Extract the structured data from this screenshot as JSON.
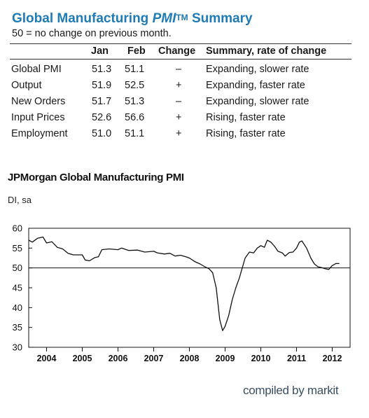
{
  "summary": {
    "title_main": "Global Manufacturing ",
    "title_em": "PMI",
    "title_tm": "TM",
    "title_end": " Summary",
    "subtitle": "50 = no change on previous month.",
    "headers": {
      "jan": "Jan",
      "feb": "Feb",
      "change": "Change",
      "summary": "Summary, rate of change"
    },
    "rows": [
      {
        "name": "Global PMI",
        "jan": "51.3",
        "feb": "51.1",
        "change": "–",
        "summary": "Expanding, slower rate"
      },
      {
        "name": "Output",
        "jan": "51.9",
        "feb": "52.5",
        "change": "+",
        "summary": "Expanding, faster rate"
      },
      {
        "name": "New Orders",
        "jan": "51.7",
        "feb": "51.3",
        "change": "–",
        "summary": "Expanding, slower rate"
      },
      {
        "name": "Input Prices",
        "jan": "52.6",
        "feb": "56.6",
        "change": "+",
        "summary": "Rising, faster rate"
      },
      {
        "name": "Employment",
        "jan": "51.0",
        "feb": "51.1",
        "change": "+",
        "summary": "Rising, faster rate"
      }
    ]
  },
  "chart_data": {
    "type": "line",
    "title": "JPMorgan Global Manufacturing PMI",
    "ylabel": "DI, sa",
    "ylim": [
      30,
      60
    ],
    "yticks": [
      30,
      35,
      40,
      45,
      50,
      55,
      60
    ],
    "xlim": [
      2003.5,
      2012.5
    ],
    "xtick_labels": [
      "2004",
      "2005",
      "2006",
      "2007",
      "2008",
      "2009",
      "2010",
      "2011",
      "2012"
    ],
    "reference_line": 50,
    "series": [
      {
        "values": [
          [
            2003.5,
            57.0
          ],
          [
            2003.6,
            56.5
          ],
          [
            2003.75,
            57.5
          ],
          [
            2003.9,
            57.8
          ],
          [
            2004.0,
            56.3
          ],
          [
            2004.15,
            56.6
          ],
          [
            2004.3,
            55.2
          ],
          [
            2004.45,
            54.8
          ],
          [
            2004.6,
            53.7
          ],
          [
            2004.75,
            53.3
          ],
          [
            2005.0,
            53.3
          ],
          [
            2005.08,
            52.0
          ],
          [
            2005.2,
            51.8
          ],
          [
            2005.35,
            52.6
          ],
          [
            2005.45,
            52.8
          ],
          [
            2005.55,
            54.6
          ],
          [
            2005.75,
            54.8
          ],
          [
            2006.0,
            54.6
          ],
          [
            2006.1,
            55.0
          ],
          [
            2006.3,
            54.4
          ],
          [
            2006.55,
            54.5
          ],
          [
            2006.75,
            54.0
          ],
          [
            2007.0,
            54.2
          ],
          [
            2007.1,
            53.8
          ],
          [
            2007.3,
            53.5
          ],
          [
            2007.45,
            53.7
          ],
          [
            2007.6,
            53.0
          ],
          [
            2007.75,
            53.2
          ],
          [
            2007.9,
            52.8
          ],
          [
            2008.0,
            52.5
          ],
          [
            2008.15,
            51.6
          ],
          [
            2008.3,
            51.0
          ],
          [
            2008.45,
            50.2
          ],
          [
            2008.55,
            49.8
          ],
          [
            2008.65,
            48.8
          ],
          [
            2008.75,
            45.0
          ],
          [
            2008.85,
            37.0
          ],
          [
            2008.93,
            34.2
          ],
          [
            2009.0,
            35.3
          ],
          [
            2009.1,
            38.0
          ],
          [
            2009.2,
            42.0
          ],
          [
            2009.3,
            45.0
          ],
          [
            2009.4,
            47.5
          ],
          [
            2009.48,
            50.0
          ],
          [
            2009.56,
            52.5
          ],
          [
            2009.68,
            54.0
          ],
          [
            2009.8,
            53.8
          ],
          [
            2009.9,
            55.0
          ],
          [
            2010.0,
            55.6
          ],
          [
            2010.1,
            55.2
          ],
          [
            2010.18,
            57.0
          ],
          [
            2010.28,
            56.5
          ],
          [
            2010.38,
            55.5
          ],
          [
            2010.48,
            54.2
          ],
          [
            2010.6,
            53.8
          ],
          [
            2010.68,
            53.0
          ],
          [
            2010.8,
            53.9
          ],
          [
            2010.9,
            54.0
          ],
          [
            2011.0,
            55.0
          ],
          [
            2011.08,
            56.5
          ],
          [
            2011.15,
            56.8
          ],
          [
            2011.28,
            55.0
          ],
          [
            2011.4,
            52.5
          ],
          [
            2011.5,
            51.0
          ],
          [
            2011.6,
            50.3
          ],
          [
            2011.7,
            50.1
          ],
          [
            2011.8,
            49.8
          ],
          [
            2011.9,
            49.6
          ],
          [
            2012.0,
            50.6
          ],
          [
            2012.1,
            51.1
          ],
          [
            2012.2,
            51.1
          ]
        ]
      }
    ]
  },
  "footer": {
    "credit": "compiled by markit"
  },
  "colors": {
    "title": "#1f7bb5",
    "credit": "#3a4f63",
    "line": "#111111"
  }
}
